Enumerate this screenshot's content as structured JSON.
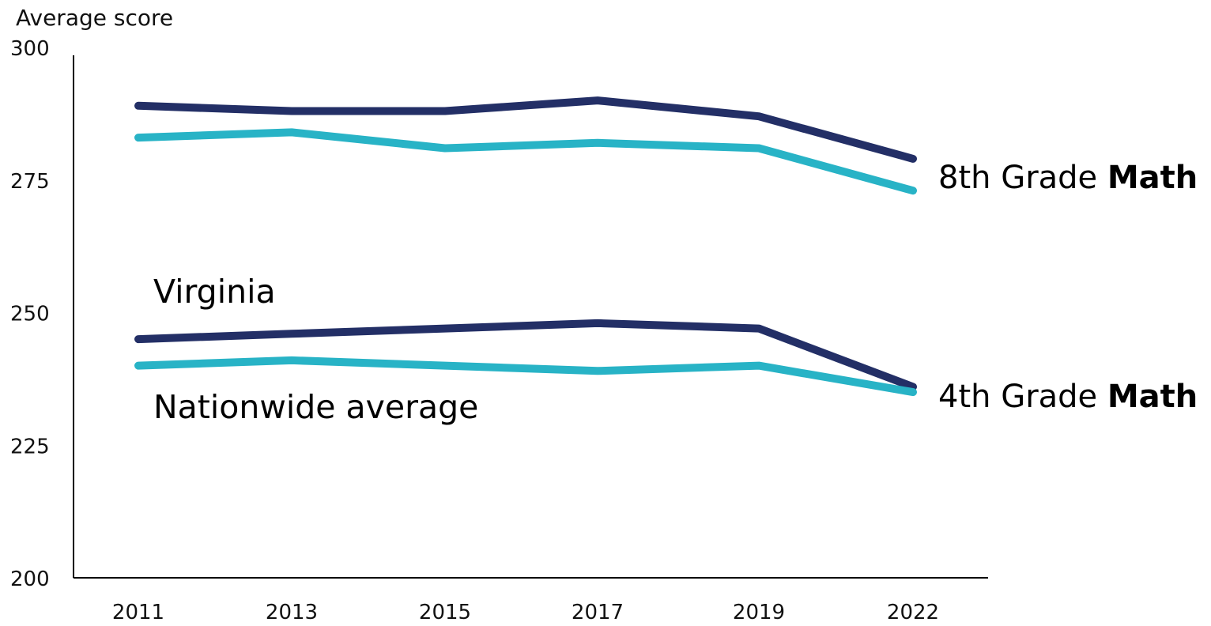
{
  "chart_data": {
    "type": "line",
    "ylabel": "Average score",
    "ylim": [
      200,
      300
    ],
    "yticks": [
      200,
      225,
      250,
      275,
      300
    ],
    "categories": [
      "2011",
      "2013",
      "2015",
      "2017",
      "2019",
      "2022"
    ],
    "series": [
      {
        "name": "Virginia",
        "group": "8th Grade Math",
        "color": "#232f66",
        "values": [
          289,
          288,
          288,
          290,
          287,
          279
        ]
      },
      {
        "name": "Nationwide average",
        "group": "8th Grade Math",
        "color": "#28b3c6",
        "values": [
          283,
          284,
          281,
          282,
          281,
          273
        ]
      },
      {
        "name": "Virginia",
        "group": "4th Grade Math",
        "color": "#232f66",
        "values": [
          245,
          246,
          247,
          248,
          247,
          236
        ]
      },
      {
        "name": "Nationwide average",
        "group": "4th Grade Math",
        "color": "#28b3c6",
        "values": [
          240,
          241,
          240,
          239,
          240,
          235
        ]
      }
    ],
    "annotations": {
      "series_labels": [
        "Virginia",
        "Nationwide average"
      ],
      "group_labels": [
        {
          "prefix": "8th Grade ",
          "bold": "Math"
        },
        {
          "prefix": "4th Grade ",
          "bold": "Math"
        }
      ]
    },
    "grid": false,
    "legend": "none"
  }
}
